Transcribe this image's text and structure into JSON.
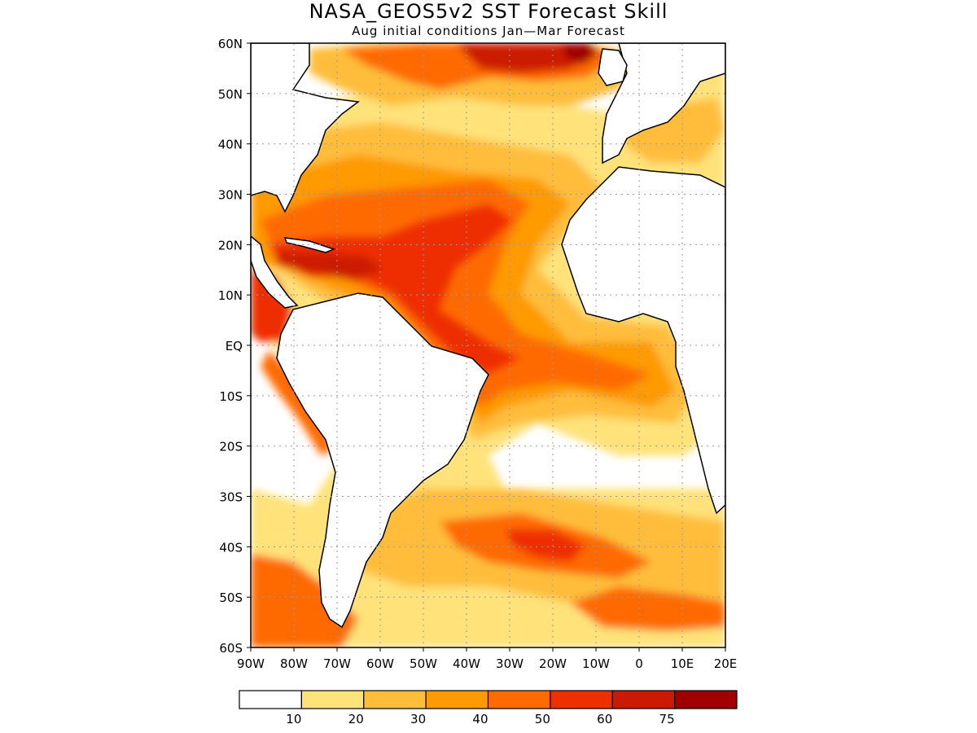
{
  "title": "NASA_GEOS5v2 SST Forecast Skill",
  "subtitle": "Aug initial conditions   Jan—Mar Forecast",
  "map": {
    "lat_labels": [
      "60N",
      "50N",
      "40N",
      "30N",
      "20N",
      "10N",
      "EQ",
      "10S",
      "20S",
      "30S",
      "40S",
      "50S",
      "60S"
    ],
    "lon_labels": [
      "90W",
      "80W",
      "70W",
      "60W",
      "50W",
      "40W",
      "30W",
      "20W",
      "10W",
      "0",
      "10E",
      "20E"
    ],
    "lat_range": [
      -60,
      60
    ],
    "lon_range": [
      -90,
      20
    ],
    "grid": true,
    "region": "Atlantic Ocean"
  },
  "colorbar": {
    "labels": [
      "10",
      "20",
      "30",
      "40",
      "50",
      "60",
      "75"
    ],
    "colors": [
      "#ffffff",
      "#ffe27a",
      "#ffbd3a",
      "#ff9a00",
      "#ff6b00",
      "#ee2f00",
      "#cc1a00",
      "#a00000"
    ],
    "levels": [
      10,
      20,
      30,
      40,
      50,
      60,
      75
    ]
  },
  "colors": {
    "land_outline": "#000000",
    "grid": "#9a9a9a"
  }
}
